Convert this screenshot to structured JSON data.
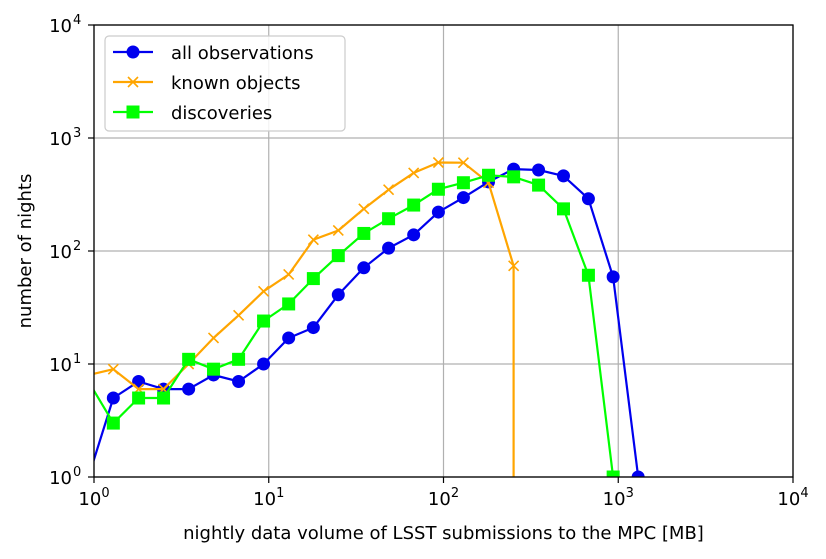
{
  "chart_data": {
    "type": "line",
    "title": "",
    "xlabel": "nightly data volume of LSST submissions to the MPC [MB]",
    "ylabel": "number of nights",
    "xscale": "log",
    "yscale": "log",
    "xlim": [
      1,
      10000
    ],
    "ylim": [
      1,
      10000
    ],
    "grid": true,
    "legend_position": "upper-left",
    "xticks": [
      {
        "value": 1,
        "base": "10",
        "exp": "0"
      },
      {
        "value": 10,
        "base": "10",
        "exp": "1"
      },
      {
        "value": 100,
        "base": "10",
        "exp": "2"
      },
      {
        "value": 1000,
        "base": "10",
        "exp": "3"
      },
      {
        "value": 10000,
        "base": "10",
        "exp": "4"
      }
    ],
    "yticks": [
      {
        "value": 1,
        "base": "10",
        "exp": "0"
      },
      {
        "value": 10,
        "base": "10",
        "exp": "1"
      },
      {
        "value": 100,
        "base": "10",
        "exp": "2"
      },
      {
        "value": 1000,
        "base": "10",
        "exp": "3"
      },
      {
        "value": 10000,
        "base": "10",
        "exp": "4"
      }
    ],
    "series": [
      {
        "name": "all observations",
        "color": "#0000ee",
        "marker": "circle",
        "x": [
          0.93,
          1.29,
          1.8,
          2.5,
          3.48,
          4.83,
          6.72,
          9.34,
          13.0,
          18.0,
          25.0,
          35.0,
          48.5,
          67.5,
          93.5,
          130,
          181,
          252,
          350,
          486,
          675,
          935,
          1300
        ],
        "y": [
          1.0,
          5,
          7,
          6,
          6,
          8,
          7,
          10,
          17,
          21,
          41,
          71,
          106,
          139,
          221,
          297,
          409,
          531,
          521,
          462,
          290,
          59,
          1
        ]
      },
      {
        "name": "known objects",
        "color": "#ffa500",
        "marker": "x",
        "x": [
          0.93,
          1.29,
          1.8,
          2.5,
          3.48,
          4.83,
          6.72,
          9.34,
          13.0,
          18.0,
          25.0,
          35.0,
          48.5,
          67.5,
          93.5,
          130,
          181,
          252,
          252
        ],
        "y": [
          8,
          9,
          6,
          6,
          10,
          17,
          27,
          44,
          62,
          126,
          152,
          236,
          349,
          491,
          607,
          605,
          402,
          74,
          1
        ],
        "markers_on": [
          1,
          1,
          1,
          1,
          1,
          1,
          1,
          1,
          1,
          1,
          1,
          1,
          1,
          1,
          1,
          1,
          1,
          1,
          0
        ]
      },
      {
        "name": "discoveries",
        "color": "#00ff00",
        "marker": "square",
        "x": [
          0.93,
          1.29,
          1.8,
          2.5,
          3.48,
          4.83,
          6.72,
          9.34,
          13.0,
          18.0,
          25.0,
          35.0,
          48.5,
          67.5,
          93.5,
          130,
          181,
          252,
          350,
          486,
          675,
          935
        ],
        "y": [
          7,
          3,
          5,
          5,
          11,
          9,
          11,
          24,
          34,
          57,
          91,
          143,
          193,
          255,
          352,
          402,
          468,
          453,
          383,
          236,
          61,
          1
        ]
      }
    ]
  }
}
